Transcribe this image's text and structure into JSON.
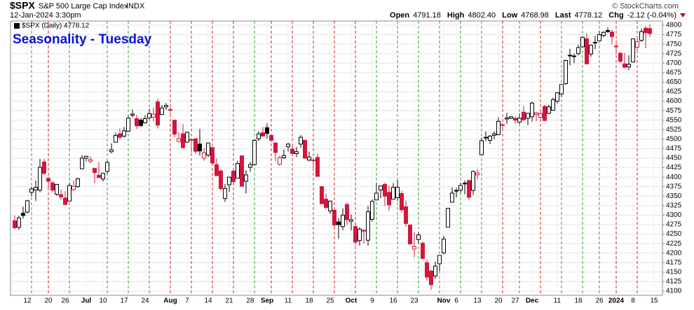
{
  "chart_data": {
    "type": "candlestick",
    "symbol": "$SPX",
    "name": "S&P 500 Large Cap Index",
    "exchange": "INDX",
    "timestamp": "12-Jan-2024 3:30pm",
    "stats": [
      {
        "label": "Open",
        "value": "4791.18"
      },
      {
        "label": "High",
        "value": "4802.40"
      },
      {
        "label": "Low",
        "value": "4768.98"
      },
      {
        "label": "Last",
        "value": "4778.12"
      },
      {
        "label": "Chg",
        "value": "-2.12 (-0.04%)"
      }
    ],
    "credit": "© StockCharts.com",
    "legend": "$SPX (Daily) 4778.12",
    "title": "Seasonality - Tuesday",
    "title_color": "#0a14d2",
    "up_color": "#000000",
    "down_color": "#d1173d",
    "up_line_color": "#2e9e2e",
    "down_line_color": "#d21e1e",
    "highlight_days": [
      4,
      8,
      13,
      22,
      27,
      32,
      37,
      42,
      47,
      52,
      57,
      61,
      66,
      71,
      76,
      81,
      86,
      91,
      96,
      101,
      106,
      111,
      116,
      120,
      125,
      130,
      135,
      139,
      143,
      148
    ],
    "grid": true,
    "ylim": [
      4089,
      4811
    ],
    "yticks": [
      4100,
      4125,
      4150,
      4175,
      4200,
      4225,
      4250,
      4275,
      4300,
      4325,
      4350,
      4375,
      4400,
      4425,
      4450,
      4475,
      4500,
      4525,
      4550,
      4575,
      4600,
      4625,
      4650,
      4675,
      4700,
      4725,
      4750,
      4775,
      4800
    ],
    "categories": [
      null,
      null,
      null,
      "12",
      null,
      null,
      null,
      null,
      "20",
      null,
      null,
      null,
      "26",
      null,
      null,
      null,
      null,
      "Jul",
      null,
      null,
      null,
      "10",
      null,
      null,
      null,
      null,
      "17",
      null,
      null,
      null,
      null,
      "24",
      null,
      null,
      null,
      null,
      null,
      "Aug",
      null,
      null,
      null,
      "7",
      null,
      null,
      null,
      null,
      "14",
      null,
      null,
      null,
      null,
      "21",
      null,
      null,
      null,
      null,
      "28",
      null,
      null,
      null,
      "Sep",
      null,
      null,
      null,
      null,
      "11",
      null,
      null,
      null,
      null,
      "18",
      null,
      null,
      null,
      null,
      "25",
      null,
      null,
      null,
      null,
      "Oct",
      null,
      null,
      null,
      null,
      "9",
      null,
      null,
      null,
      null,
      "16",
      null,
      null,
      null,
      null,
      "23",
      null,
      null,
      null,
      null,
      null,
      null,
      "Nov",
      null,
      null,
      "6",
      null,
      null,
      null,
      null,
      "13",
      null,
      null,
      null,
      null,
      "20",
      null,
      null,
      null,
      "27",
      null,
      null,
      null,
      "Dec",
      null,
      null,
      null,
      null,
      null,
      "11",
      null,
      null,
      null,
      null,
      "18",
      null,
      null,
      null,
      null,
      "26",
      null,
      null,
      null,
      "2024",
      null,
      null,
      null,
      "8",
      null,
      null,
      null,
      null,
      "15"
    ],
    "open": [
      4285,
      4268,
      4305,
      4308,
      4360,
      4366,
      4366,
      4440,
      4397,
      4385,
      4355,
      4354,
      4345,
      4337,
      4367,
      4375,
      4422,
      4450,
      4442,
      4423,
      4405,
      4395,
      4415,
      4467,
      4492,
      4514,
      4508,
      4521,
      4563,
      4554,
      4550,
      4543,
      4556,
      4558,
      4598,
      4565,
      4585,
      4578,
      4550,
      4494,
      4514,
      4492,
      4498,
      4501,
      4487,
      4450,
      4458,
      4478,
      4433,
      4416,
      4344,
      4380,
      4416,
      4397,
      4456,
      4389,
      4426,
      4433,
      4501,
      4517,
      4530,
      4510,
      4490,
      4434,
      4451,
      4480,
      4474,
      4462,
      4487,
      4497,
      4445,
      4445,
      4452,
      4375,
      4342,
      4311,
      4313,
      4282,
      4270,
      4328,
      4284,
      4270,
      4233,
      4260,
      4234,
      4289,
      4340,
      4366,
      4381,
      4360,
      4342,
      4346,
      4357,
      4322,
      4274,
      4211,
      4236,
      4226,
      4175,
      4153,
      4140,
      4172,
      4201,
      4268,
      4334,
      4364,
      4366,
      4384,
      4391,
      4365,
      4406,
      4459,
      4505,
      4497,
      4510,
      4512,
      4538,
      4553,
      4555,
      4555,
      4545,
      4571,
      4555,
      4559,
      4565,
      4557,
      4586,
      4568,
      4576,
      4600,
      4619,
      4646,
      4721,
      4719,
      4725,
      4743,
      4764,
      4724,
      4754,
      4759,
      4773,
      4786,
      4782,
      4745,
      4726,
      4698,
      4690,
      4703,
      4742,
      4760,
      4792,
      4791.18,
      null
    ],
    "high": [
      4299,
      4298,
      4322,
      4340,
      4375,
      4391,
      4448,
      4448,
      4401,
      4390,
      4382,
      4367,
      4363,
      4385,
      4391,
      4398,
      4458,
      4456,
      4454,
      4423,
      4440,
      4412,
      4443,
      4489,
      4517,
      4528,
      4532,
      4562,
      4578,
      4564,
      4555,
      4563,
      4580,
      4583,
      4607,
      4590,
      4595,
      4585,
      4550,
      4519,
      4540,
      4520,
      4503,
      4502,
      4527,
      4476,
      4490,
      4478,
      4449,
      4421,
      4382,
      4401,
      4419,
      4443,
      4458,
      4418,
      4440,
      4500,
      4521,
      4532,
      4541,
      4514,
      4490,
      4457,
      4473,
      4490,
      4487,
      4479,
      4511,
      4497,
      4467,
      4452,
      4462,
      4376,
      4357,
      4338,
      4313,
      4292,
      4318,
      4333,
      4301,
      4282,
      4268,
      4263,
      4324,
      4341,
      4385,
      4378,
      4385,
      4378,
      4384,
      4393,
      4364,
      4339,
      4276,
      4255,
      4255,
      4231,
      4183,
      4156,
      4178,
      4194,
      4245,
      4319,
      4373,
      4372,
      4386,
      4391,
      4393,
      4418,
      4421,
      4504,
      4521,
      4511,
      4521,
      4557,
      4542,
      4569,
      4560,
      4558,
      4568,
      4588,
      4569,
      4599,
      4572,
      4579,
      4590,
      4591,
      4609,
      4623,
      4644,
      4709,
      4738,
      4725,
      4749,
      4769,
      4779,
      4749,
      4772,
      4785,
      4784,
      4794,
      4788,
      4755,
      4730,
      4727,
      4721,
      4765,
      4765,
      4791,
      4798,
      4802.4,
      null
    ],
    "low": [
      4263,
      4261,
      4291,
      4305,
      4349,
      4337,
      4360,
      4407,
      4372,
      4360,
      4351,
      4341,
      4328,
      4337,
      4364,
      4372,
      4422,
      4442,
      4436,
      4384,
      4397,
      4389,
      4409,
      4463,
      4491,
      4500,
      4504,
      4519,
      4557,
      4527,
      4532,
      4541,
      4552,
      4547,
      4528,
      4564,
      4577,
      4567,
      4505,
      4491,
      4474,
      4491,
      4464,
      4462,
      4457,
      4443,
      4453,
      4432,
      4403,
      4365,
      4335,
      4361,
      4383,
      4397,
      4375,
      4357,
      4414,
      4431,
      4495,
      4507,
      4501,
      4492,
      4442,
      4430,
      4448,
      4468,
      4461,
      4453,
      4478,
      4448,
      4442,
      4416,
      4402,
      4330,
      4316,
      4303,
      4270,
      4238,
      4260,
      4274,
      4260,
      4220,
      4220,
      4225,
      4220,
      4283,
      4339,
      4345,
      4325,
      4311,
      4342,
      4337,
      4306,
      4269,
      4224,
      4189,
      4224,
      4184,
      4128,
      4104,
      4132,
      4153,
      4197,
      4268,
      4334,
      4347,
      4359,
      4355,
      4340,
      4353,
      4394,
      4459,
      4495,
      4487,
      4500,
      4510,
      4525,
      4541,
      4553,
      4541,
      4540,
      4548,
      4537,
      4547,
      4547,
      4555,
      4547,
      4566,
      4575,
      4594,
      4611,
      4643,
      4694,
      4700,
      4721,
      4743,
      4698,
      4717,
      4737,
      4759,
      4768,
      4780,
      4751,
      4723,
      4700,
      4687,
      4682,
      4702,
      4731,
      4756,
      4739,
      4768.98,
      null
    ],
    "close": [
      4267,
      4293,
      4299,
      4338,
      4369,
      4373,
      4426,
      4410,
      4389,
      4366,
      4381,
      4348,
      4328,
      4378,
      4376,
      4396,
      4450,
      4455,
      4446,
      4412,
      4399,
      4410,
      4439,
      4472,
      4510,
      4505,
      4522,
      4555,
      4566,
      4535,
      4536,
      4554,
      4567,
      4566,
      4537,
      4582,
      4589,
      4577,
      4513,
      4501,
      4478,
      4518,
      4499,
      4468,
      4469,
      4464,
      4490,
      4437,
      4404,
      4370,
      4370,
      4400,
      4388,
      4436,
      4376,
      4406,
      4433,
      4497,
      4514,
      4508,
      4515,
      4497,
      4465,
      4451,
      4457,
      4487,
      4462,
      4467,
      4505,
      4450,
      4453,
      4444,
      4402,
      4330,
      4320,
      4337,
      4274,
      4275,
      4300,
      4288,
      4288,
      4229,
      4263,
      4258,
      4309,
      4336,
      4358,
      4377,
      4350,
      4327,
      4373,
      4373,
      4314,
      4278,
      4224,
      4217,
      4248,
      4186,
      4137,
      4117,
      4166,
      4194,
      4237,
      4318,
      4358,
      4365,
      4378,
      4383,
      4347,
      4415,
      4411,
      4496,
      4503,
      4508,
      4514,
      4547,
      4538,
      4556,
      4559,
      4550,
      4555,
      4551,
      4568,
      4595,
      4569,
      4567,
      4549,
      4585,
      4604,
      4622,
      4644,
      4707,
      4719,
      4719,
      4741,
      4768,
      4698,
      4747,
      4755,
      4775,
      4781,
      4783,
      4770,
      4743,
      4705,
      4689,
      4697,
      4764,
      4757,
      4783,
      4780,
      4778.12,
      null
    ]
  }
}
